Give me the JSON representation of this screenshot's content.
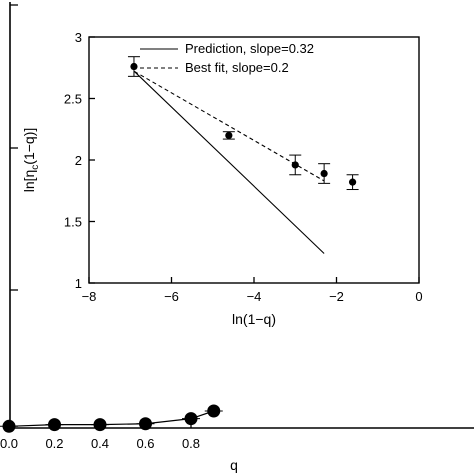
{
  "chart_data": [
    {
      "type": "line",
      "xlabel": "q",
      "ylabel": "",
      "xlim": [
        0,
        0.9
      ],
      "x_ticks": [
        "0.0",
        "0.2",
        "0.4",
        "0.6",
        "0.8"
      ],
      "series": [
        {
          "x": [
            0.0,
            0.2,
            0.4,
            0.6,
            0.8,
            0.9
          ],
          "y": [
            0.02,
            0.04,
            0.04,
            0.05,
            0.11,
            0.2
          ],
          "marker": "circle",
          "color": "#000000"
        }
      ]
    },
    {
      "type": "line",
      "title": "",
      "xlabel": "ln(1−q)",
      "ylabel": "ln[η_c(1−q)]",
      "xlim": [
        -8,
        0
      ],
      "ylim": [
        1,
        3
      ],
      "x_ticks": [
        "−8",
        "−6",
        "−4",
        "−2",
        "0"
      ],
      "y_ticks": [
        "1",
        "1.5",
        "2",
        "2.5",
        "3"
      ],
      "legend_position": "top-right",
      "series": [
        {
          "name": "Prediction, slope=0.32",
          "style": "solid",
          "color": "#000000",
          "x": [
            -6.9,
            -2.3
          ],
          "y": [
            2.72,
            1.24
          ]
        },
        {
          "name": "Best fit, slope=0.2",
          "style": "dashed",
          "color": "#000000",
          "x": [
            -6.9,
            -2.3
          ],
          "y": [
            2.72,
            1.83
          ]
        },
        {
          "name": "data",
          "style": "points",
          "color": "#000000",
          "x": [
            -6.91,
            -4.61,
            -3.0,
            -2.3,
            -1.61
          ],
          "y": [
            2.76,
            2.2,
            1.96,
            1.89,
            1.82
          ],
          "err": [
            0.08,
            0.03,
            0.08,
            0.08,
            0.06
          ]
        }
      ]
    }
  ]
}
